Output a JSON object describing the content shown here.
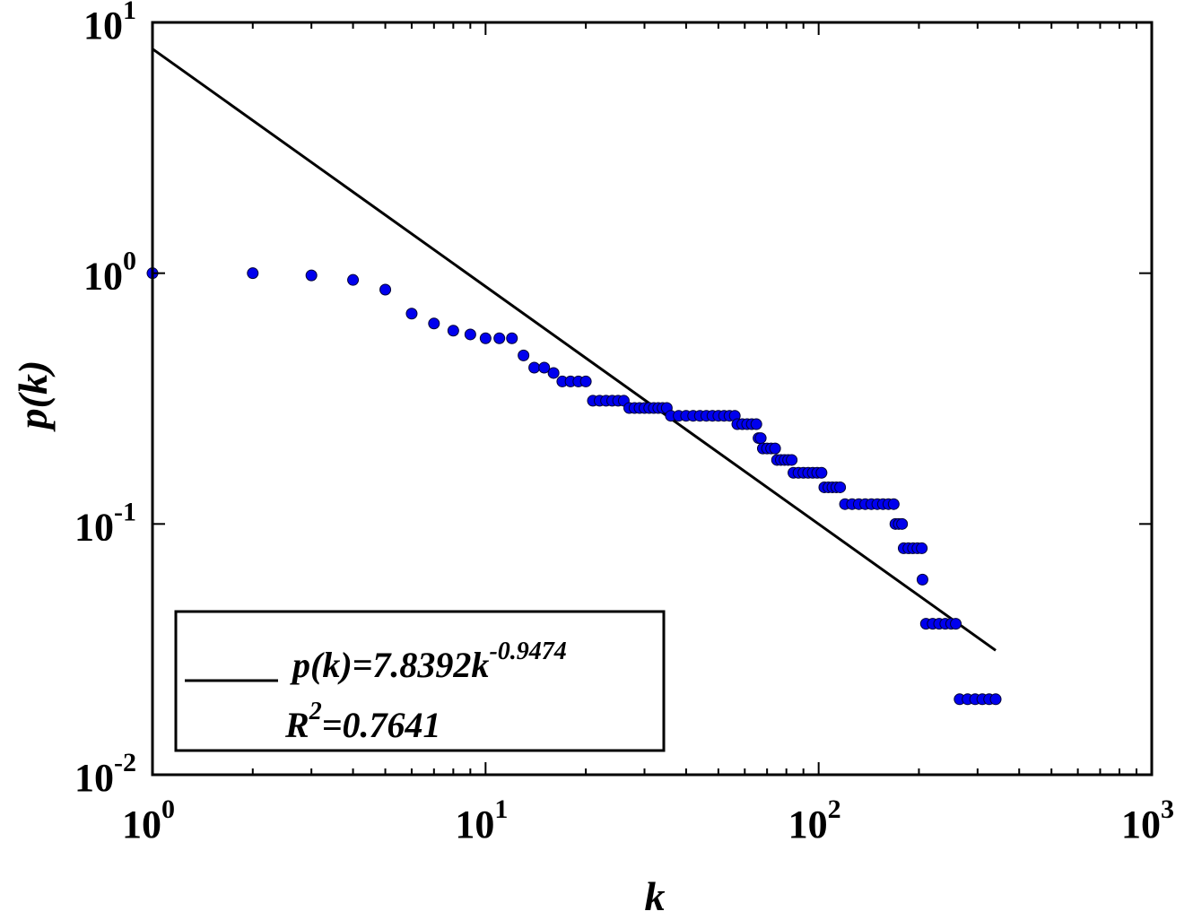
{
  "chart_data": {
    "type": "scatter",
    "xscale": "log",
    "yscale": "log",
    "xlim": [
      1,
      1000
    ],
    "ylim": [
      0.01,
      10
    ],
    "xlabel": "k",
    "ylabel": "p(k)",
    "x_ticks": [
      {
        "base": "10",
        "exp": "0",
        "value": 1
      },
      {
        "base": "10",
        "exp": "1",
        "value": 10
      },
      {
        "base": "10",
        "exp": "2",
        "value": 100
      },
      {
        "base": "10",
        "exp": "3",
        "value": 1000
      }
    ],
    "y_ticks": [
      {
        "base": "10",
        "exp": "-2",
        "value": 0.01
      },
      {
        "base": "10",
        "exp": "-1",
        "value": 0.1
      },
      {
        "base": "10",
        "exp": "0",
        "value": 1
      },
      {
        "base": "10",
        "exp": "1",
        "value": 10
      }
    ],
    "grid": false,
    "marker_color": "#0000ee",
    "fit_color": "#000000",
    "series": [
      {
        "kind": "points",
        "points": [
          [
            1,
            1.0
          ],
          [
            2,
            1.0
          ],
          [
            3,
            0.98
          ],
          [
            4,
            0.94
          ],
          [
            5,
            0.86
          ],
          [
            6,
            0.69
          ],
          [
            7,
            0.63
          ],
          [
            8,
            0.59
          ],
          [
            9,
            0.57
          ],
          [
            10,
            0.55
          ],
          [
            11,
            0.55
          ],
          [
            12,
            0.55
          ],
          [
            13,
            0.47
          ],
          [
            14,
            0.42
          ],
          [
            15,
            0.42
          ],
          [
            16,
            0.4
          ],
          [
            17,
            0.37
          ],
          [
            18,
            0.37
          ],
          [
            19,
            0.37
          ],
          [
            20,
            0.37
          ],
          [
            21,
            0.31
          ],
          [
            22,
            0.31
          ],
          [
            23,
            0.31
          ],
          [
            24,
            0.31
          ],
          [
            25,
            0.31
          ],
          [
            26,
            0.31
          ],
          [
            27,
            0.29
          ],
          [
            28,
            0.29
          ],
          [
            29,
            0.29
          ],
          [
            30,
            0.29
          ],
          [
            31,
            0.29
          ],
          [
            32,
            0.29
          ],
          [
            33,
            0.29
          ],
          [
            34,
            0.29
          ],
          [
            35,
            0.29
          ],
          [
            36,
            0.27
          ],
          [
            38,
            0.27
          ],
          [
            40,
            0.27
          ],
          [
            42,
            0.27
          ],
          [
            44,
            0.27
          ],
          [
            46,
            0.27
          ],
          [
            48,
            0.27
          ],
          [
            50,
            0.27
          ],
          [
            52,
            0.27
          ],
          [
            54,
            0.27
          ],
          [
            56,
            0.27
          ],
          [
            57,
            0.25
          ],
          [
            59,
            0.25
          ],
          [
            61,
            0.25
          ],
          [
            63,
            0.25
          ],
          [
            65,
            0.25
          ],
          [
            66,
            0.22
          ],
          [
            67,
            0.22
          ],
          [
            68,
            0.2
          ],
          [
            70,
            0.2
          ],
          [
            72,
            0.2
          ],
          [
            74,
            0.2
          ],
          [
            75,
            0.18
          ],
          [
            77,
            0.18
          ],
          [
            79,
            0.18
          ],
          [
            81,
            0.18
          ],
          [
            83,
            0.18
          ],
          [
            84,
            0.16
          ],
          [
            87,
            0.16
          ],
          [
            90,
            0.16
          ],
          [
            93,
            0.16
          ],
          [
            96,
            0.16
          ],
          [
            99,
            0.16
          ],
          [
            102,
            0.16
          ],
          [
            104,
            0.14
          ],
          [
            107,
            0.14
          ],
          [
            110,
            0.14
          ],
          [
            113,
            0.14
          ],
          [
            116,
            0.14
          ],
          [
            120,
            0.12
          ],
          [
            126,
            0.12
          ],
          [
            132,
            0.12
          ],
          [
            138,
            0.12
          ],
          [
            144,
            0.12
          ],
          [
            150,
            0.12
          ],
          [
            156,
            0.12
          ],
          [
            162,
            0.12
          ],
          [
            168,
            0.12
          ],
          [
            170,
            0.1
          ],
          [
            174,
            0.1
          ],
          [
            178,
            0.1
          ],
          [
            180,
            0.08
          ],
          [
            186,
            0.08
          ],
          [
            192,
            0.08
          ],
          [
            198,
            0.08
          ],
          [
            204,
            0.08
          ],
          [
            205,
            0.06
          ],
          [
            210,
            0.04
          ],
          [
            220,
            0.04
          ],
          [
            230,
            0.04
          ],
          [
            240,
            0.04
          ],
          [
            250,
            0.04
          ],
          [
            258,
            0.04
          ],
          [
            265,
            0.02
          ],
          [
            280,
            0.02
          ],
          [
            295,
            0.02
          ],
          [
            310,
            0.02
          ],
          [
            325,
            0.02
          ],
          [
            340,
            0.02
          ]
        ]
      },
      {
        "kind": "fit",
        "coefficient": 7.8392,
        "exponent": -0.9474,
        "x_range": [
          1,
          340
        ]
      }
    ],
    "legend": {
      "position": "bottom-left",
      "equation_main": "p(k)=7.8392k",
      "equation_exp": "-0.9474",
      "r2_main": "R",
      "r2_sup": "2",
      "r2_value": "=0.7641"
    }
  }
}
